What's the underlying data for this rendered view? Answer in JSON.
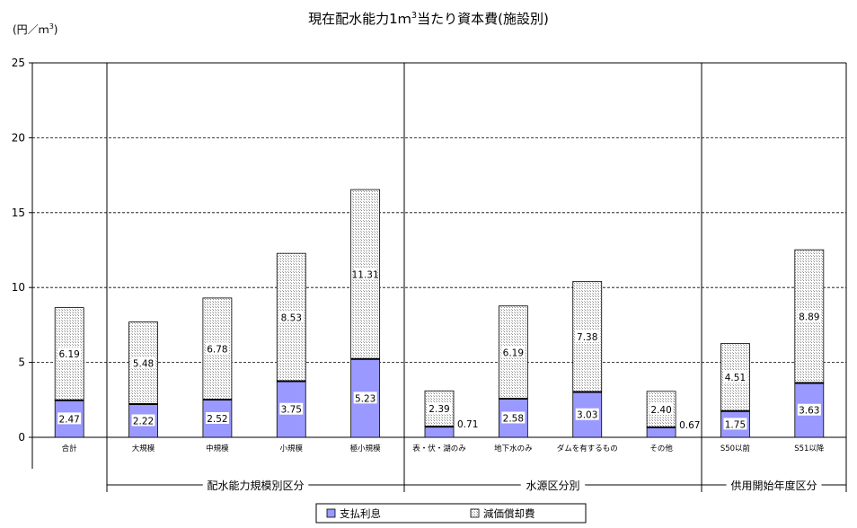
{
  "chart_data": {
    "type": "bar",
    "stacked": true,
    "title_main": "現在配水能力1ｍ",
    "title_sup": "3",
    "title_rest": "当たり資本費(施設別)",
    "ylabel_main": "(円／ｍ",
    "ylabel_sup": "3",
    "ylabel_rest": ")",
    "ylim": [
      0,
      25
    ],
    "yticks": [
      0,
      5,
      10,
      15,
      20,
      25
    ],
    "grid": true,
    "categories": [
      "合計",
      "大規模",
      "中規模",
      "小規模",
      "極小規模",
      "表・伏・湖のみ",
      "地下水のみ",
      "ダムを有するもの",
      "その他",
      "S50以前",
      "S51以降"
    ],
    "series": [
      {
        "name": "支払利息",
        "values": [
          2.47,
          2.22,
          2.52,
          3.75,
          5.23,
          0.71,
          2.58,
          3.03,
          0.67,
          1.75,
          3.63
        ],
        "color": "#9999ff"
      },
      {
        "name": "減価償却費",
        "values": [
          6.19,
          5.48,
          6.78,
          8.53,
          11.31,
          2.39,
          6.19,
          7.38,
          2.4,
          4.51,
          8.89
        ],
        "color": "#e0e0e0"
      }
    ],
    "bottom_labels": [
      "2.47",
      "2.22",
      "2.52",
      "3.75",
      "5.23",
      "0.71",
      "2.58",
      "3.03",
      "0.67",
      "1.75",
      "3.63"
    ],
    "top_labels": [
      "6.19",
      "5.48",
      "6.78",
      "8.53",
      "11.31",
      "2.39",
      "6.19",
      "7.38",
      "2.40",
      "4.51",
      "8.89"
    ],
    "groups": [
      {
        "label": "配水能力規模別区分"
      },
      {
        "label": "水源区分別"
      },
      {
        "label": "供用開始年度区分"
      }
    ],
    "legend": [
      "支払利息",
      "減価償却費"
    ],
    "legend_position": "bottom"
  }
}
